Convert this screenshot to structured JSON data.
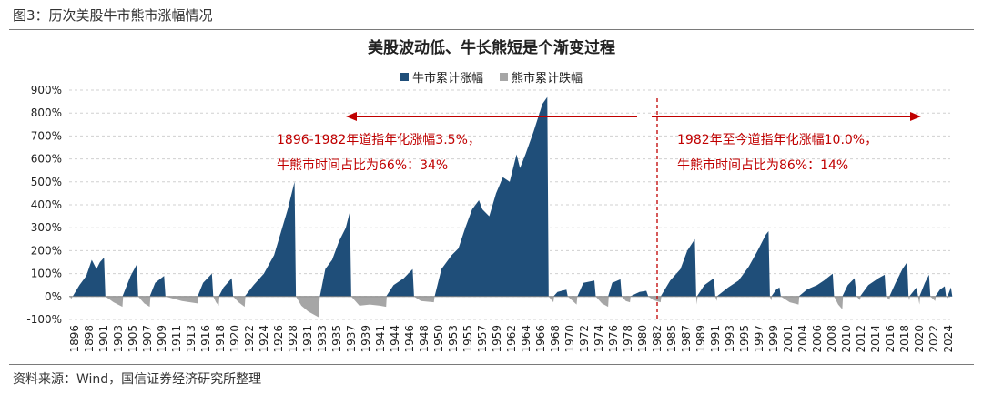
{
  "figure": {
    "caption": "图3：历次美股牛市熊市涨幅情况",
    "source": "资料来源：Wind，国信证券经济研究所整理"
  },
  "legend": {
    "bull_label": "牛市累计涨幅",
    "bear_label": "熊市累计跌幅"
  },
  "annotations": {
    "left_line1": "1896-1982年道指年化涨幅3.5%，",
    "left_line2": "牛熊市时间占比为66%：34%",
    "right_line1": "1982年至今道指年化涨幅10.0%，",
    "right_line2": "牛熊市时间占比为86%：14%"
  },
  "chart_data": {
    "type": "area",
    "title": "美股波动低、牛长熊短是个渐变过程",
    "xlabel": "",
    "ylabel": "",
    "xlim": [
      1896,
      2025
    ],
    "ylim": [
      -100,
      900
    ],
    "y_ticks": [
      -100,
      0,
      100,
      200,
      300,
      400,
      500,
      600,
      700,
      800,
      900
    ],
    "y_tick_labels": [
      "-100%",
      "0%",
      "100%",
      "200%",
      "300%",
      "400%",
      "500%",
      "600%",
      "700%",
      "800%",
      "900%"
    ],
    "x_tick_labels": [
      "1896",
      "1898",
      "1901",
      "1903",
      "1905",
      "1907",
      "1909",
      "1911",
      "1913",
      "1916",
      "1918",
      "1920",
      "1922",
      "1924",
      "1926",
      "1928",
      "1931",
      "1933",
      "1935",
      "1937",
      "1939",
      "1941",
      "1944",
      "1946",
      "1948",
      "1950",
      "1953",
      "1955",
      "1957",
      "1959",
      "1962",
      "1964",
      "1966",
      "1968",
      "1970",
      "1972",
      "1974",
      "1976",
      "1978",
      "1980",
      "1982",
      "1985",
      "1987",
      "1989",
      "1991",
      "1993",
      "1995",
      "1997",
      "1999",
      "2001",
      "2004",
      "2006",
      "2008",
      "2010",
      "2012",
      "2014",
      "2016",
      "2018",
      "2020",
      "2022",
      "2024"
    ],
    "grid": true,
    "legend_position": "top-center",
    "colors": {
      "bull": "#1f4e79",
      "bear": "#a6a6a6",
      "annotation": "#c00000"
    },
    "divider_year": 1982,
    "series": [
      {
        "name": "牛市累计涨幅",
        "values": [
          [
            1896.5,
            0
          ],
          [
            1897.5,
            50
          ],
          [
            1898.5,
            90
          ],
          [
            1899.3,
            160
          ],
          [
            1900,
            120
          ],
          [
            1900.5,
            150
          ],
          [
            1901.1,
            170
          ],
          [
            1901.3,
            0
          ],
          [
            1903.8,
            0
          ],
          [
            1905,
            90
          ],
          [
            1905.9,
            140
          ],
          [
            1906.1,
            0
          ],
          [
            1907.8,
            0
          ],
          [
            1908.6,
            60
          ],
          [
            1909.9,
            90
          ],
          [
            1910.1,
            0
          ],
          [
            1914.8,
            0
          ],
          [
            1915.6,
            60
          ],
          [
            1916.9,
            100
          ],
          [
            1917.1,
            0
          ],
          [
            1917.9,
            0
          ],
          [
            1918.6,
            40
          ],
          [
            1919.8,
            80
          ],
          [
            1920.0,
            0
          ],
          [
            1921.7,
            0
          ],
          [
            1923,
            50
          ],
          [
            1924.5,
            100
          ],
          [
            1926,
            180
          ],
          [
            1927,
            280
          ],
          [
            1928,
            380
          ],
          [
            1929.0,
            500
          ],
          [
            1929.2,
            0
          ],
          [
            1932.7,
            0
          ],
          [
            1933.5,
            120
          ],
          [
            1934.5,
            160
          ],
          [
            1935.5,
            240
          ],
          [
            1936.5,
            300
          ],
          [
            1937.1,
            370
          ],
          [
            1937.3,
            0
          ],
          [
            1942.4,
            0
          ],
          [
            1943.5,
            50
          ],
          [
            1945,
            80
          ],
          [
            1946.3,
            120
          ],
          [
            1946.5,
            0
          ],
          [
            1949.5,
            0
          ],
          [
            1950.5,
            120
          ],
          [
            1952,
            180
          ],
          [
            1953,
            210
          ],
          [
            1954,
            300
          ],
          [
            1955,
            380
          ],
          [
            1956.0,
            420
          ],
          [
            1956.5,
            380
          ],
          [
            1957.5,
            350
          ],
          [
            1958.5,
            450
          ],
          [
            1959.5,
            520
          ],
          [
            1960.5,
            500
          ],
          [
            1961.5,
            620
          ],
          [
            1962.0,
            560
          ],
          [
            1962.8,
            620
          ],
          [
            1964,
            720
          ],
          [
            1965.3,
            840
          ],
          [
            1966.0,
            870
          ],
          [
            1966.2,
            0
          ],
          [
            1966.9,
            0
          ],
          [
            1967.5,
            20
          ],
          [
            1968.8,
            30
          ],
          [
            1969.0,
            0
          ],
          [
            1970.4,
            0
          ],
          [
            1971.3,
            60
          ],
          [
            1972.9,
            70
          ],
          [
            1973.1,
            0
          ],
          [
            1974.9,
            0
          ],
          [
            1975.5,
            60
          ],
          [
            1976.7,
            75
          ],
          [
            1976.9,
            0
          ],
          [
            1978.1,
            0
          ],
          [
            1979.5,
            20
          ],
          [
            1980.5,
            25
          ],
          [
            1980.8,
            0
          ],
          [
            1982.6,
            0
          ],
          [
            1984.0,
            70
          ],
          [
            1985.5,
            120
          ],
          [
            1986.5,
            200
          ],
          [
            1987.6,
            250
          ],
          [
            1987.8,
            0
          ],
          [
            1987.9,
            0
          ],
          [
            1989.0,
            50
          ],
          [
            1990.4,
            80
          ],
          [
            1990.6,
            0
          ],
          [
            1990.8,
            0
          ],
          [
            1992.5,
            40
          ],
          [
            1994.0,
            70
          ],
          [
            1995.5,
            130
          ],
          [
            1996.8,
            200
          ],
          [
            1998.0,
            270
          ],
          [
            1998.4,
            285
          ],
          [
            1998.6,
            0
          ],
          [
            1998.8,
            0
          ],
          [
            1999.5,
            30
          ],
          [
            2000.0,
            40
          ],
          [
            2000.2,
            0
          ],
          [
            2002.8,
            0
          ],
          [
            2004.0,
            30
          ],
          [
            2005.5,
            50
          ],
          [
            2006.5,
            70
          ],
          [
            2007.8,
            100
          ],
          [
            2008.0,
            0
          ],
          [
            2009.2,
            0
          ],
          [
            2010.0,
            50
          ],
          [
            2011.0,
            80
          ],
          [
            2011.3,
            0
          ],
          [
            2011.8,
            0
          ],
          [
            2013.0,
            50
          ],
          [
            2014.5,
            80
          ],
          [
            2015.4,
            95
          ],
          [
            2015.6,
            0
          ],
          [
            2016.1,
            0
          ],
          [
            2017.0,
            60
          ],
          [
            2018.0,
            120
          ],
          [
            2018.7,
            150
          ],
          [
            2018.9,
            0
          ],
          [
            2019.0,
            0
          ],
          [
            2019.8,
            30
          ],
          [
            2020.1,
            40
          ],
          [
            2020.3,
            0
          ],
          [
            2020.5,
            0
          ],
          [
            2021.3,
            60
          ],
          [
            2021.9,
            95
          ],
          [
            2022.1,
            0
          ],
          [
            2022.8,
            0
          ],
          [
            2023.5,
            30
          ],
          [
            2024.2,
            45
          ],
          [
            2024.4,
            0
          ],
          [
            2024.6,
            0
          ],
          [
            2025.1,
            40
          ],
          [
            2025.3,
            0
          ]
        ]
      },
      {
        "name": "熊市累计跌幅",
        "values": [
          [
            1896.1,
            0
          ],
          [
            1896.3,
            -10
          ],
          [
            1896.5,
            0
          ],
          [
            1901.3,
            0
          ],
          [
            1902.5,
            -25
          ],
          [
            1903.8,
            -45
          ],
          [
            1903.9,
            0
          ],
          [
            1906.1,
            0
          ],
          [
            1907.0,
            -30
          ],
          [
            1907.8,
            -45
          ],
          [
            1907.9,
            0
          ],
          [
            1910.1,
            0
          ],
          [
            1912.5,
            -20
          ],
          [
            1914.8,
            -30
          ],
          [
            1914.9,
            0
          ],
          [
            1917.1,
            0
          ],
          [
            1917.5,
            -25
          ],
          [
            1917.9,
            -40
          ],
          [
            1918.0,
            0
          ],
          [
            1920.0,
            0
          ],
          [
            1920.8,
            -25
          ],
          [
            1921.7,
            -45
          ],
          [
            1921.8,
            0
          ],
          [
            1929.2,
            0
          ],
          [
            1930.0,
            -40
          ],
          [
            1931.0,
            -65
          ],
          [
            1932.5,
            -90
          ],
          [
            1932.7,
            0
          ],
          [
            1937.3,
            0
          ],
          [
            1938.5,
            -40
          ],
          [
            1940.0,
            -35
          ],
          [
            1941.5,
            -40
          ],
          [
            1942.4,
            -45
          ],
          [
            1942.5,
            0
          ],
          [
            1946.5,
            0
          ],
          [
            1947.5,
            -20
          ],
          [
            1949.4,
            -25
          ],
          [
            1949.5,
            0
          ],
          [
            1966.2,
            0
          ],
          [
            1966.9,
            -25
          ],
          [
            1967.0,
            0
          ],
          [
            1969.0,
            0
          ],
          [
            1970.3,
            -35
          ],
          [
            1970.4,
            0
          ],
          [
            1973.1,
            0
          ],
          [
            1974.0,
            -30
          ],
          [
            1974.9,
            -45
          ],
          [
            1975.0,
            0
          ],
          [
            1976.9,
            0
          ],
          [
            1977.5,
            -20
          ],
          [
            1978.1,
            -25
          ],
          [
            1978.2,
            0
          ],
          [
            1980.8,
            0
          ],
          [
            1981.5,
            -15
          ],
          [
            1982.6,
            -25
          ],
          [
            1982.7,
            0
          ],
          [
            1987.8,
            0
          ],
          [
            1987.9,
            -35
          ],
          [
            1988.0,
            0
          ],
          [
            1990.6,
            0
          ],
          [
            1990.8,
            -20
          ],
          [
            1990.9,
            0
          ],
          [
            1998.6,
            0
          ],
          [
            1998.8,
            -18
          ],
          [
            1998.9,
            0
          ],
          [
            2000.2,
            0
          ],
          [
            2001.5,
            -25
          ],
          [
            2002.8,
            -35
          ],
          [
            2002.9,
            0
          ],
          [
            2008.0,
            0
          ],
          [
            2008.6,
            -35
          ],
          [
            2009.2,
            -55
          ],
          [
            2009.3,
            0
          ],
          [
            2011.3,
            0
          ],
          [
            2011.8,
            -16
          ],
          [
            2011.9,
            0
          ],
          [
            2015.6,
            0
          ],
          [
            2016.1,
            -15
          ],
          [
            2016.2,
            0
          ],
          [
            2018.9,
            0
          ],
          [
            2019.0,
            -18
          ],
          [
            2019.1,
            0
          ],
          [
            2020.3,
            0
          ],
          [
            2020.5,
            -35
          ],
          [
            2020.6,
            0
          ],
          [
            2022.1,
            0
          ],
          [
            2022.8,
            -20
          ],
          [
            2022.9,
            0
          ],
          [
            2024.4,
            0
          ],
          [
            2024.6,
            -8
          ],
          [
            2024.7,
            0
          ]
        ]
      }
    ]
  }
}
